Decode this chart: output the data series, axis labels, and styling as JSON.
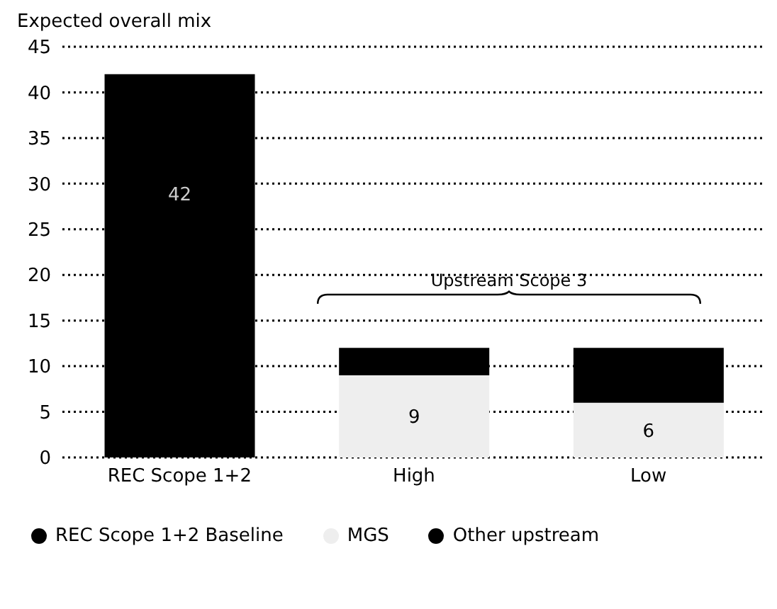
{
  "chart_data": {
    "type": "bar",
    "ylabel": "Expected overall mix",
    "categories": [
      "REC Scope 1+2",
      "High",
      "Low"
    ],
    "stacked": true,
    "series": [
      {
        "name": "REC Scope 1+2 Baseline",
        "color": "#000000",
        "values": [
          42,
          null,
          null
        ],
        "value_labels": [
          "42",
          null,
          null
        ]
      },
      {
        "name": "MGS",
        "color": "#eeeeee",
        "values": [
          null,
          9,
          6
        ],
        "value_labels": [
          null,
          "9",
          "6"
        ]
      },
      {
        "name": "Other upstream",
        "color": "#000000",
        "values": [
          null,
          3,
          6
        ]
      }
    ],
    "ylim": [
      0,
      45
    ],
    "yticks": [
      0,
      5,
      10,
      15,
      20,
      25,
      30,
      35,
      40,
      45
    ],
    "grid": "y",
    "legend": "bottom",
    "annotations": [
      "Upstream Scope 3"
    ]
  }
}
